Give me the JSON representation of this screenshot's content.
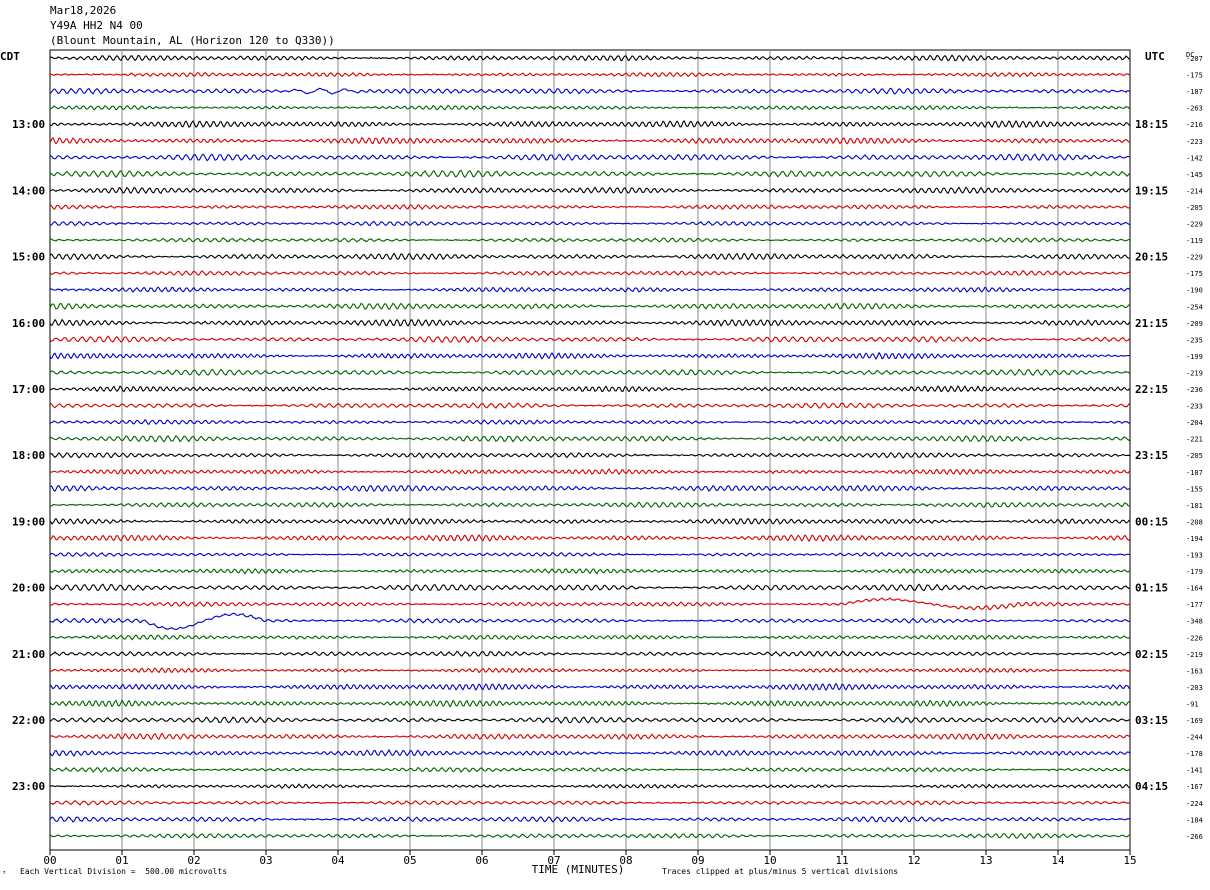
{
  "header": {
    "date": "Mar18,2026",
    "channel": "Y49A HH2 N4 00",
    "location": "(Blount Mountain, AL (Horizon 120 to Q330))"
  },
  "chart_data": {
    "type": "line",
    "title": "Y49A HH2 N4 00",
    "left_zone_label": "CDT",
    "right_zone_label": "UTC",
    "dc_label": "DC",
    "xlabel": "TIME (MINUTES)",
    "x_ticks": [
      "00",
      "01",
      "02",
      "03",
      "04",
      "05",
      "06",
      "07",
      "08",
      "09",
      "10",
      "11",
      "12",
      "13",
      "14",
      "15"
    ],
    "xlim": [
      0,
      15
    ],
    "lines_per_hour": 4,
    "trace_colors": [
      "#000000",
      "#d40000",
      "#0000c8",
      "#006400"
    ],
    "left_hour_labels": [
      "13:00",
      "14:00",
      "15:00",
      "16:00",
      "17:00",
      "18:00",
      "19:00",
      "20:00",
      "21:00",
      "22:00",
      "23:00"
    ],
    "right_hour_labels": [
      "18:15",
      "19:15",
      "20:15",
      "21:15",
      "22:15",
      "23:15",
      "00:15",
      "01:15",
      "02:15",
      "03:15",
      "04:15"
    ],
    "dc_offsets": [
      "-207",
      "-175",
      "-187",
      "-263",
      "-216",
      "-223",
      "-142",
      "-145",
      "-214",
      "-205",
      "-229",
      "-119",
      "-229",
      "-175",
      "-190",
      "-254",
      "-209",
      "-235",
      "-199",
      "-219",
      "-236",
      "-233",
      "-204",
      "-221",
      "-205",
      "-187",
      "-155",
      "-181",
      "-208",
      "-194",
      "-193",
      "-179",
      "-164",
      "-177",
      "-348",
      "-226",
      "-219",
      "-163",
      "-203",
      "-91",
      "-169",
      "-244",
      "-178",
      "-141",
      "-167",
      "-224",
      "-184",
      "-266"
    ],
    "events": [
      {
        "trace": 34,
        "minute_start": 1.3,
        "minute_end": 3.0,
        "type": "long-period swing"
      },
      {
        "trace": 33,
        "minute_start": 11.0,
        "minute_end": 13.5,
        "type": "long-period swing"
      },
      {
        "trace": 2,
        "minute_start": 3.2,
        "minute_end": 4.4,
        "type": "burst"
      }
    ]
  },
  "footer": {
    "scale_note": "Each Vertical Division =  500.00 microvolts",
    "clip_note": "Traces clipped at plus/minus 5 vertical divisions",
    "corner_mark": "³"
  }
}
